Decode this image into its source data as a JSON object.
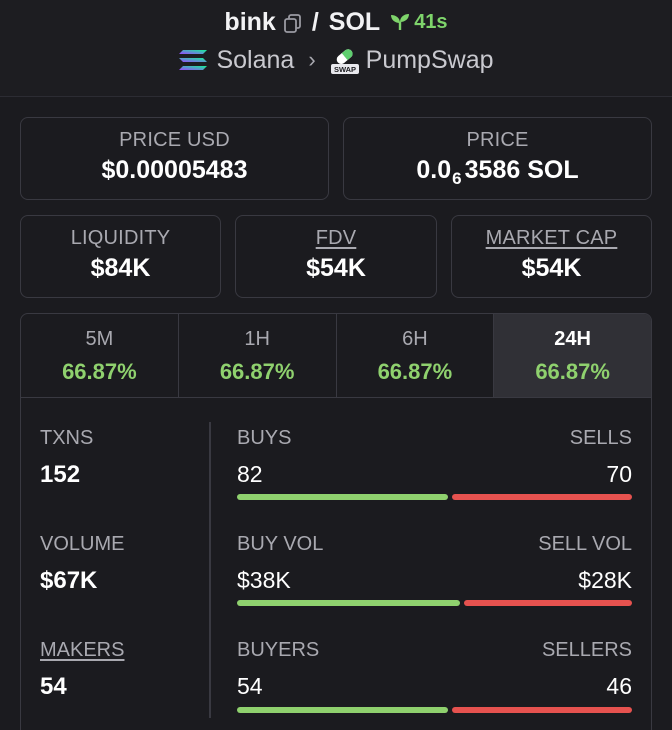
{
  "header": {
    "base_symbol": "bink",
    "separator": "/",
    "quote_symbol": "SOL",
    "age": "41s",
    "chain": "Solana",
    "chain_icon": "solana-logo-icon",
    "dex": "PumpSwap",
    "dex_icon": "pumpswap-logo-icon",
    "dex_badge": "SWAP",
    "chevron": "›"
  },
  "price_usd": {
    "label": "PRICE USD",
    "value": "$0.00005483"
  },
  "price_native": {
    "label": "PRICE",
    "prefix": "0.0",
    "subscript": "6",
    "suffix": "3586 SOL"
  },
  "liquidity": {
    "label": "LIQUIDITY",
    "value": "$84K"
  },
  "fdv": {
    "label": "FDV",
    "value": "$54K"
  },
  "market_cap": {
    "label": "MARKET CAP",
    "value": "$54K"
  },
  "timeframes": [
    {
      "label": "5M",
      "change": "66.87%"
    },
    {
      "label": "1H",
      "change": "66.87%"
    },
    {
      "label": "6H",
      "change": "66.87%"
    },
    {
      "label": "24H",
      "change": "66.87%",
      "active": true
    }
  ],
  "stats": {
    "txns": {
      "label": "TXNS",
      "value": "152"
    },
    "volume": {
      "label": "VOLUME",
      "value": "$67K"
    },
    "makers": {
      "label": "MAKERS",
      "value": "54"
    },
    "buys": {
      "label": "BUYS",
      "value": "82",
      "share": 0.54
    },
    "sells": {
      "label": "SELLS",
      "value": "70",
      "share": 0.46
    },
    "buy_vol": {
      "label": "BUY VOL",
      "value": "$38K",
      "share": 0.57
    },
    "sell_vol": {
      "label": "SELL VOL",
      "value": "$28K",
      "share": 0.43
    },
    "buyers": {
      "label": "BUYERS",
      "value": "54",
      "share": 0.54
    },
    "sellers": {
      "label": "SELLERS",
      "value": "46",
      "share": 0.46
    }
  },
  "colors": {
    "positive": "#8fd16e",
    "negative": "#e6524f",
    "age_green": "#7ed46b"
  }
}
